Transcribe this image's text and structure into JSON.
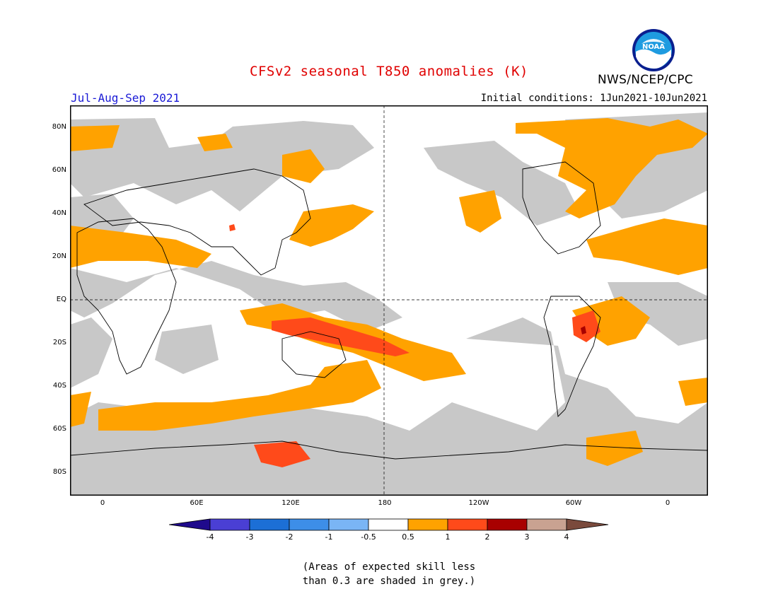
{
  "title": "CFSv2 seasonal T850 anomalies (K)",
  "period": "Jul-Aug-Sep 2021",
  "initial_conditions": "Initial conditions: 1Jun2021-10Jun2021",
  "agency": "NWS/NCEP/CPC",
  "logo_text": "NOAA",
  "lat_labels": [
    "80N",
    "60N",
    "40N",
    "20N",
    "EQ",
    "20S",
    "40S",
    "60S",
    "80S"
  ],
  "lon_labels": [
    "0",
    "60E",
    "120E",
    "180",
    "120W",
    "60W",
    "0"
  ],
  "colorbar": {
    "labels": [
      "-4",
      "-3",
      "-2",
      "-1",
      "-0.5",
      "0.5",
      "1",
      "2",
      "3",
      "4"
    ],
    "colors": [
      "#1f0a8c",
      "#4a3fd4",
      "#1c6fd6",
      "#3d8ee8",
      "#7ab5f5",
      "#ffffff",
      "#ffa200",
      "#ff4a1a",
      "#a80000",
      "#c9a291",
      "#7a4a3c"
    ]
  },
  "note_line1": "(Areas of expected skill less",
  "note_line2": "than 0.3 are shaded in grey.)",
  "map": {
    "skill_mask_color": "#c8c8c8",
    "anom_05_1_color": "#ffa200",
    "anom_1_2_color": "#ff4a1a",
    "anom_2_3_color": "#a80000"
  }
}
